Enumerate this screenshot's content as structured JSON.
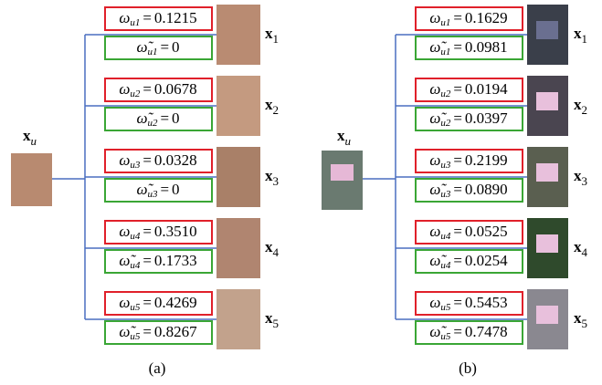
{
  "symbols": {
    "weight": "ω",
    "weight_tilde": "ω̃",
    "equals": "=",
    "x": "x"
  },
  "panels": [
    {
      "caption": "(a)",
      "query": {
        "subscript": "u"
      },
      "items": [
        {
          "sub": "u1",
          "weight": "0.1215",
          "weight_tilde": "0",
          "label_sub": "1"
        },
        {
          "sub": "u2",
          "weight": "0.0678",
          "weight_tilde": "0",
          "label_sub": "2"
        },
        {
          "sub": "u3",
          "weight": "0.0328",
          "weight_tilde": "0",
          "label_sub": "3"
        },
        {
          "sub": "u4",
          "weight": "0.3510",
          "weight_tilde": "0.1733",
          "label_sub": "4"
        },
        {
          "sub": "u5",
          "weight": "0.4269",
          "weight_tilde": "0.8267",
          "label_sub": "5"
        }
      ]
    },
    {
      "caption": "(b)",
      "query": {
        "subscript": "u"
      },
      "items": [
        {
          "sub": "u1",
          "weight": "0.1629",
          "weight_tilde": "0.0981",
          "label_sub": "1"
        },
        {
          "sub": "u2",
          "weight": "0.0194",
          "weight_tilde": "0.0397",
          "label_sub": "2"
        },
        {
          "sub": "u3",
          "weight": "0.2199",
          "weight_tilde": "0.0890",
          "label_sub": "3"
        },
        {
          "sub": "u4",
          "weight": "0.0525",
          "weight_tilde": "0.0254",
          "label_sub": "4"
        },
        {
          "sub": "u5",
          "weight": "0.5453",
          "weight_tilde": "0.7478",
          "label_sub": "5"
        }
      ]
    }
  ]
}
